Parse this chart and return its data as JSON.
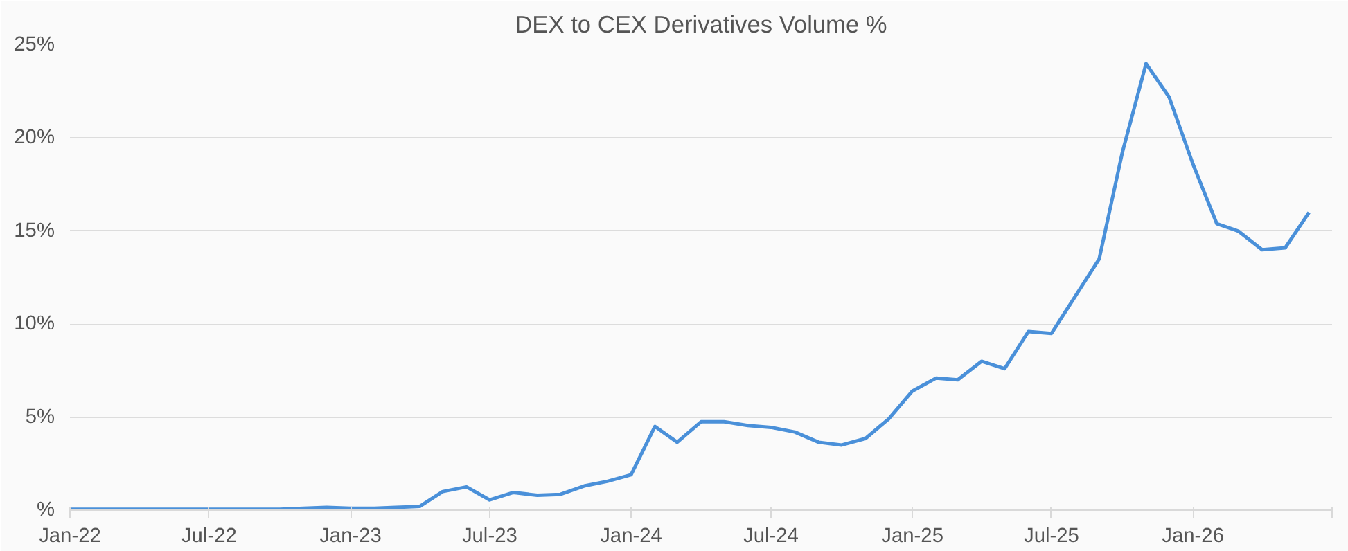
{
  "chart_data": {
    "type": "line",
    "title": "DEX to CEX Derivatives Volume %",
    "x": [
      "2022-01",
      "2022-02",
      "2022-03",
      "2022-04",
      "2022-05",
      "2022-06",
      "2022-07",
      "2022-08",
      "2022-09",
      "2022-10",
      "2022-11",
      "2022-12",
      "2023-01",
      "2023-02",
      "2023-03",
      "2023-04",
      "2023-05",
      "2023-06",
      "2023-07",
      "2023-08",
      "2023-09",
      "2023-10",
      "2023-11",
      "2023-12",
      "2024-01",
      "2024-02",
      "2024-03",
      "2024-04",
      "2024-05",
      "2024-06",
      "2024-07",
      "2024-08",
      "2024-09",
      "2024-10",
      "2024-11",
      "2024-12",
      "2025-01",
      "2025-02",
      "2025-03",
      "2025-04",
      "2025-05",
      "2025-06",
      "2025-07",
      "2025-08",
      "2025-09",
      "2025-10",
      "2025-11",
      "2025-12",
      "2026-01",
      "2026-02",
      "2026-03",
      "2026-04",
      "2026-05",
      "2026-06"
    ],
    "series": [
      {
        "color": "#4a90d9",
        "values": [
          0.05,
          0.05,
          0.05,
          0.05,
          0.05,
          0.05,
          0.05,
          0.05,
          0.05,
          0.05,
          0.1,
          0.15,
          0.1,
          0.1,
          0.15,
          0.2,
          1.0,
          1.25,
          0.55,
          0.95,
          0.8,
          0.85,
          1.3,
          1.55,
          1.9,
          4.5,
          3.65,
          4.75,
          4.75,
          4.55,
          4.45,
          4.2,
          3.65,
          3.5,
          3.85,
          4.9,
          6.4,
          7.1,
          7.0,
          8.0,
          7.6,
          9.6,
          9.5,
          11.5,
          13.5,
          19.2,
          24.0,
          22.2,
          18.6,
          15.4,
          15.0,
          14.0,
          14.1,
          16.0
        ]
      }
    ],
    "xlim": [
      "2022-01",
      "2026-07"
    ],
    "xticks": [
      {
        "value": "2022-01",
        "label": "Jan-22"
      },
      {
        "value": "2022-07",
        "label": "Jul-22"
      },
      {
        "value": "2023-01",
        "label": "Jan-23"
      },
      {
        "value": "2023-07",
        "label": "Jul-23"
      },
      {
        "value": "2024-01",
        "label": "Jan-24"
      },
      {
        "value": "2024-07",
        "label": "Jul-24"
      },
      {
        "value": "2025-01",
        "label": "Jan-25"
      },
      {
        "value": "2025-07",
        "label": "Jul-25"
      },
      {
        "value": "2026-01",
        "label": "Jan-26"
      },
      {
        "value": "2026-07",
        "label": null
      }
    ],
    "ylim": [
      0,
      25
    ],
    "yticks": [
      {
        "value": 0,
        "label": "%"
      },
      {
        "value": 5,
        "label": "5%"
      },
      {
        "value": 10,
        "label": "10%"
      },
      {
        "value": 15,
        "label": "15%"
      },
      {
        "value": 20,
        "label": "20%"
      },
      {
        "value": 25,
        "label": "25%"
      }
    ],
    "grid": "y",
    "marker": "none",
    "line_style": "solid"
  }
}
